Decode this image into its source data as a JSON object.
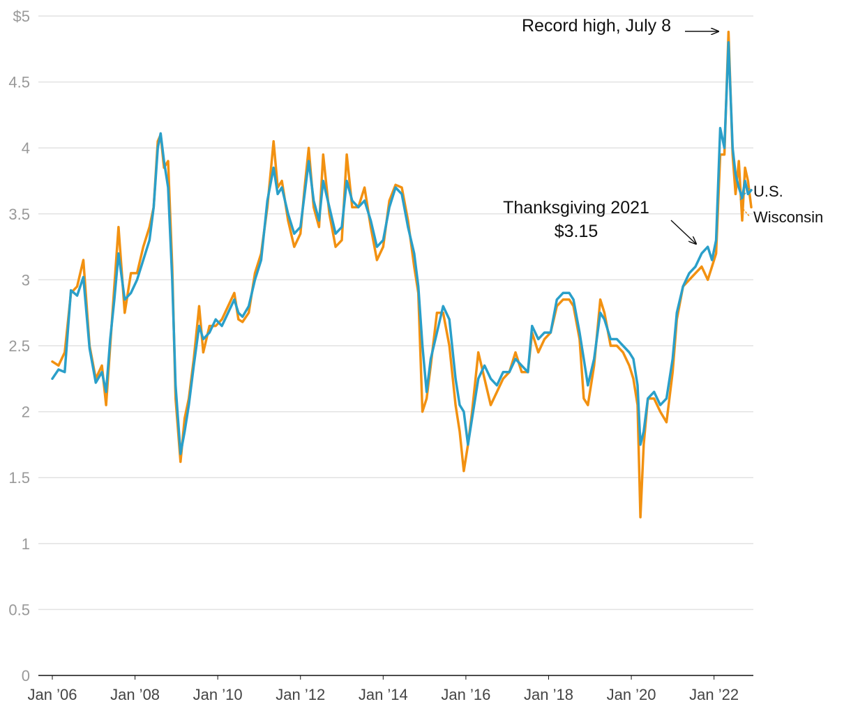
{
  "chart_data": {
    "type": "line",
    "title": "",
    "xlabel": "",
    "ylabel": "",
    "ylim": [
      0,
      5
    ],
    "xlim": [
      2006.0,
      2022.9
    ],
    "grid": true,
    "y_ticks": [
      {
        "value": 0,
        "label": "0"
      },
      {
        "value": 0.5,
        "label": "0.5"
      },
      {
        "value": 1,
        "label": "1"
      },
      {
        "value": 1.5,
        "label": "1.5"
      },
      {
        "value": 2,
        "label": "2"
      },
      {
        "value": 2.5,
        "label": "2.5"
      },
      {
        "value": 3,
        "label": "3"
      },
      {
        "value": 3.5,
        "label": "3.5"
      },
      {
        "value": 4,
        "label": "4"
      },
      {
        "value": 4.5,
        "label": "4.5"
      },
      {
        "value": 5,
        "label": "$5"
      }
    ],
    "x_ticks": [
      {
        "value": 2006,
        "label": "Jan ’06"
      },
      {
        "value": 2008,
        "label": "Jan ’08"
      },
      {
        "value": 2010,
        "label": "Jan ’10"
      },
      {
        "value": 2012,
        "label": "Jan ’12"
      },
      {
        "value": 2014,
        "label": "Jan ’14"
      },
      {
        "value": 2016,
        "label": "Jan ’16"
      },
      {
        "value": 2018,
        "label": "Jan ’18"
      },
      {
        "value": 2020,
        "label": "Jan ’20"
      },
      {
        "value": 2022,
        "label": "Jan ’22"
      }
    ],
    "series": [
      {
        "name": "U.S.",
        "color": "#2a9fc9",
        "x": [
          2006.0,
          2006.15,
          2006.3,
          2006.45,
          2006.6,
          2006.75,
          2006.9,
          2007.05,
          2007.2,
          2007.3,
          2007.4,
          2007.5,
          2007.6,
          2007.75,
          2007.9,
          2008.05,
          2008.2,
          2008.35,
          2008.45,
          2008.55,
          2008.62,
          2008.7,
          2008.8,
          2008.9,
          2008.98,
          2009.1,
          2009.2,
          2009.3,
          2009.42,
          2009.55,
          2009.65,
          2009.8,
          2009.95,
          2010.1,
          2010.25,
          2010.4,
          2010.5,
          2010.6,
          2010.75,
          2010.9,
          2011.05,
          2011.2,
          2011.35,
          2011.45,
          2011.55,
          2011.7,
          2011.85,
          2012.0,
          2012.1,
          2012.2,
          2012.32,
          2012.45,
          2012.55,
          2012.7,
          2012.85,
          2013.0,
          2013.12,
          2013.25,
          2013.4,
          2013.55,
          2013.7,
          2013.85,
          2014.0,
          2014.15,
          2014.3,
          2014.45,
          2014.6,
          2014.75,
          2014.85,
          2014.95,
          2015.05,
          2015.15,
          2015.3,
          2015.45,
          2015.6,
          2015.75,
          2015.85,
          2015.95,
          2016.05,
          2016.15,
          2016.3,
          2016.45,
          2016.6,
          2016.75,
          2016.9,
          2017.05,
          2017.2,
          2017.35,
          2017.5,
          2017.6,
          2017.75,
          2017.9,
          2018.05,
          2018.2,
          2018.35,
          2018.5,
          2018.6,
          2018.75,
          2018.85,
          2018.95,
          2019.1,
          2019.25,
          2019.35,
          2019.5,
          2019.65,
          2019.8,
          2019.95,
          2020.05,
          2020.15,
          2020.22,
          2020.3,
          2020.4,
          2020.55,
          2020.7,
          2020.85,
          2021.0,
          2021.1,
          2021.25,
          2021.4,
          2021.55,
          2021.7,
          2021.85,
          2021.95,
          2022.05,
          2022.15,
          2022.25,
          2022.35,
          2022.45,
          2022.52,
          2022.6,
          2022.68,
          2022.75,
          2022.82,
          2022.9
        ],
        "values": [
          2.25,
          2.32,
          2.3,
          2.92,
          2.88,
          3.02,
          2.48,
          2.22,
          2.3,
          2.15,
          2.55,
          2.85,
          3.2,
          2.85,
          2.9,
          3.0,
          3.15,
          3.3,
          3.55,
          4.0,
          4.11,
          3.9,
          3.7,
          3.0,
          2.2,
          1.68,
          1.85,
          2.05,
          2.35,
          2.65,
          2.55,
          2.6,
          2.7,
          2.65,
          2.75,
          2.85,
          2.75,
          2.72,
          2.8,
          3.0,
          3.15,
          3.6,
          3.85,
          3.65,
          3.7,
          3.5,
          3.35,
          3.4,
          3.65,
          3.9,
          3.6,
          3.45,
          3.75,
          3.55,
          3.35,
          3.4,
          3.75,
          3.6,
          3.55,
          3.6,
          3.45,
          3.25,
          3.3,
          3.55,
          3.7,
          3.65,
          3.4,
          3.2,
          2.95,
          2.5,
          2.15,
          2.4,
          2.6,
          2.8,
          2.7,
          2.25,
          2.05,
          2.0,
          1.75,
          1.95,
          2.25,
          2.35,
          2.25,
          2.2,
          2.3,
          2.3,
          2.4,
          2.35,
          2.3,
          2.65,
          2.55,
          2.6,
          2.6,
          2.85,
          2.9,
          2.9,
          2.85,
          2.6,
          2.4,
          2.2,
          2.4,
          2.75,
          2.7,
          2.55,
          2.55,
          2.5,
          2.45,
          2.4,
          2.2,
          1.75,
          1.85,
          2.1,
          2.15,
          2.05,
          2.1,
          2.4,
          2.75,
          2.95,
          3.05,
          3.1,
          3.2,
          3.25,
          3.15,
          3.3,
          4.15,
          4.0,
          4.8,
          4.0,
          3.8,
          3.7,
          3.62,
          3.75,
          3.65,
          3.68
        ]
      },
      {
        "name": "Wisconsin",
        "color": "#f29111",
        "x": [
          2006.0,
          2006.15,
          2006.3,
          2006.45,
          2006.6,
          2006.75,
          2006.9,
          2007.05,
          2007.2,
          2007.3,
          2007.4,
          2007.5,
          2007.6,
          2007.75,
          2007.9,
          2008.05,
          2008.2,
          2008.35,
          2008.45,
          2008.55,
          2008.62,
          2008.7,
          2008.8,
          2008.9,
          2008.98,
          2009.1,
          2009.2,
          2009.3,
          2009.42,
          2009.55,
          2009.65,
          2009.8,
          2009.95,
          2010.1,
          2010.25,
          2010.4,
          2010.5,
          2010.6,
          2010.75,
          2010.9,
          2011.05,
          2011.2,
          2011.35,
          2011.45,
          2011.55,
          2011.7,
          2011.85,
          2012.0,
          2012.1,
          2012.2,
          2012.32,
          2012.45,
          2012.55,
          2012.7,
          2012.85,
          2013.0,
          2013.12,
          2013.25,
          2013.4,
          2013.55,
          2013.7,
          2013.85,
          2014.0,
          2014.15,
          2014.3,
          2014.45,
          2014.6,
          2014.75,
          2014.85,
          2014.95,
          2015.05,
          2015.15,
          2015.3,
          2015.45,
          2015.6,
          2015.75,
          2015.85,
          2015.95,
          2016.05,
          2016.15,
          2016.3,
          2016.45,
          2016.6,
          2016.75,
          2016.9,
          2017.05,
          2017.2,
          2017.35,
          2017.5,
          2017.6,
          2017.75,
          2017.9,
          2018.05,
          2018.2,
          2018.35,
          2018.5,
          2018.6,
          2018.75,
          2018.85,
          2018.95,
          2019.1,
          2019.25,
          2019.35,
          2019.5,
          2019.65,
          2019.8,
          2019.95,
          2020.05,
          2020.15,
          2020.22,
          2020.3,
          2020.4,
          2020.55,
          2020.7,
          2020.85,
          2021.0,
          2021.1,
          2021.25,
          2021.4,
          2021.55,
          2021.7,
          2021.85,
          2021.95,
          2022.05,
          2022.15,
          2022.25,
          2022.35,
          2022.45,
          2022.52,
          2022.6,
          2022.68,
          2022.75,
          2022.82,
          2022.9
        ],
        "values": [
          2.38,
          2.35,
          2.45,
          2.9,
          2.95,
          3.15,
          2.5,
          2.25,
          2.35,
          2.05,
          2.5,
          2.95,
          3.4,
          2.75,
          3.05,
          3.05,
          3.25,
          3.4,
          3.55,
          4.05,
          4.1,
          3.85,
          3.9,
          3.1,
          2.1,
          1.62,
          1.95,
          2.1,
          2.4,
          2.8,
          2.45,
          2.65,
          2.65,
          2.7,
          2.8,
          2.9,
          2.7,
          2.68,
          2.75,
          3.05,
          3.2,
          3.55,
          4.05,
          3.7,
          3.75,
          3.45,
          3.25,
          3.35,
          3.7,
          4.0,
          3.55,
          3.4,
          3.95,
          3.5,
          3.25,
          3.3,
          3.95,
          3.55,
          3.55,
          3.7,
          3.4,
          3.15,
          3.25,
          3.6,
          3.72,
          3.7,
          3.45,
          3.1,
          2.9,
          2.0,
          2.1,
          2.35,
          2.75,
          2.75,
          2.5,
          2.05,
          1.85,
          1.55,
          1.75,
          2.0,
          2.45,
          2.25,
          2.05,
          2.15,
          2.25,
          2.3,
          2.45,
          2.3,
          2.3,
          2.6,
          2.45,
          2.55,
          2.6,
          2.8,
          2.85,
          2.85,
          2.8,
          2.55,
          2.1,
          2.05,
          2.35,
          2.85,
          2.75,
          2.5,
          2.5,
          2.45,
          2.35,
          2.25,
          2.05,
          1.2,
          1.75,
          2.1,
          2.1,
          2.0,
          1.92,
          2.3,
          2.7,
          2.95,
          3.0,
          3.05,
          3.1,
          3.0,
          3.1,
          3.2,
          3.95,
          3.95,
          4.88,
          3.95,
          3.65,
          3.9,
          3.45,
          3.85,
          3.75,
          3.55
        ]
      }
    ],
    "annotations": [
      {
        "text": "Record high, July 8",
        "target_x": 2022.5,
        "target_y": 4.88
      },
      {
        "text": "Thanksgiving 2021",
        "text2": "$3.15",
        "target_x": 2021.93,
        "target_y": 3.27
      }
    ]
  }
}
